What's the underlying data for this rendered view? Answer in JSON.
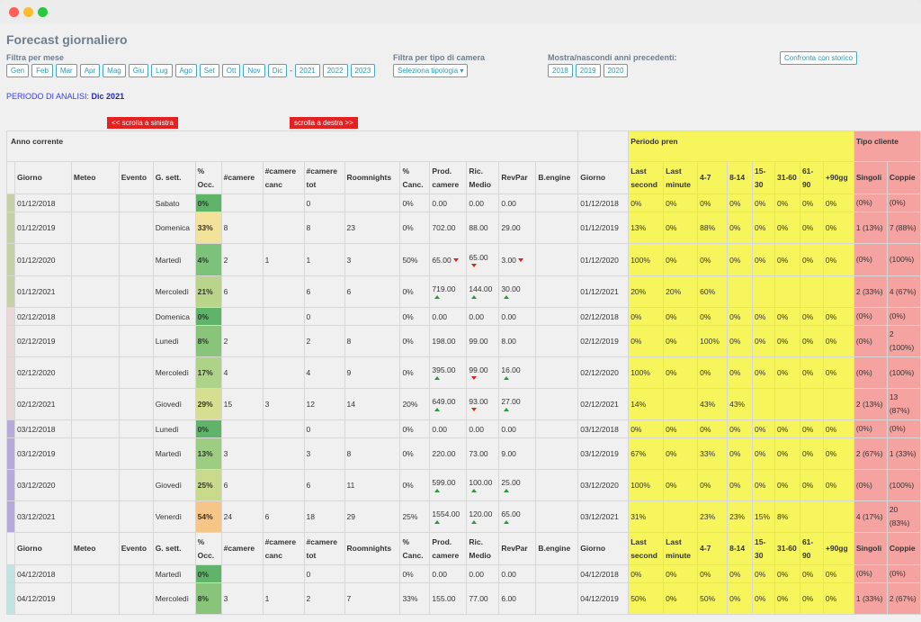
{
  "page_title": "Forecast giornaliero",
  "filters": {
    "month_label": "Filtra per mese",
    "months": [
      "Gen",
      "Feb",
      "Mar",
      "Apr",
      "Mag",
      "Giu",
      "Lug",
      "Ago",
      "Set",
      "Ott",
      "Nov",
      "Dic"
    ],
    "separator": "-",
    "years": [
      "2021",
      "2022",
      "2023"
    ],
    "room_label": "Filtra per tipo di camera",
    "room_select": "Seleziona tipologia",
    "prev_label": "Mostra/nascondi anni precedenti:",
    "prev_years": [
      "2018",
      "2019",
      "2020"
    ],
    "compare_button": "Confronta con storico"
  },
  "period": {
    "label": "PERIODO DI ANALISI:",
    "value": "Dic 2021"
  },
  "scroll": {
    "left": "<< scrolla a sinistra",
    "right": "scrolla a destra >>"
  },
  "colors": {
    "accent": "#2f98b8",
    "yellow": "#f7f55c",
    "pink": "#f4a3a0",
    "red": "#e52020"
  },
  "table": {
    "section_current": "Anno corrente",
    "section_period": "Periodo pren",
    "section_client": "Tipo cliente",
    "headers": [
      "Giorno",
      "Meteo",
      "Evento",
      "G. sett.",
      "% Occ.",
      "#camere",
      "#camere canc",
      "#camere tot",
      "Roomnights",
      "% Canc.",
      "Prod. camere",
      "Ric. Medio",
      "RevPar",
      "B.engine",
      "Giorno",
      "Last second",
      "Last minute",
      "4-7",
      "8-14",
      "15-30",
      "31-60",
      "61-90",
      "+90gg",
      "Singoli",
      "Coppie"
    ],
    "groups": [
      {
        "bar": "#c6cfa6",
        "rows": [
          {
            "day": "01/12/2018",
            "wd": "Sabato",
            "occ": "0%",
            "occ_bg": "#5fb46a",
            "cam": "",
            "canc": "",
            "tot": "0",
            "rn": "",
            "pc": "0%",
            "prod": "0.00",
            "ric": "0.00",
            "rev": "0.00",
            "prod_a": "",
            "ric_a": "",
            "rev_a": "",
            "d2": "01/12/2018",
            "ls": "0%",
            "lm": "0%",
            "c1": "0%",
            "c2": "0%",
            "c3": "0%",
            "c4": "0%",
            "c5": "0%",
            "c6": "0%",
            "sin": "(0%)",
            "cop": "(0%)"
          },
          {
            "day": "01/12/2019",
            "wd": "Domenica",
            "occ": "33%",
            "occ_bg": "#f2e29a",
            "cam": "8",
            "canc": "",
            "tot": "8",
            "rn": "23",
            "pc": "0%",
            "prod": "702.00",
            "ric": "88.00",
            "rev": "29.00",
            "prod_a": "",
            "ric_a": "",
            "rev_a": "",
            "d2": "01/12/2019",
            "ls": "13%",
            "lm": "0%",
            "c1": "88%",
            "c2": "0%",
            "c3": "0%",
            "c4": "0%",
            "c5": "0%",
            "c6": "0%",
            "sin": "1 (13%)",
            "cop": "7 (88%)"
          },
          {
            "day": "01/12/2020",
            "wd": "Martedì",
            "occ": "4%",
            "occ_bg": "#7cc27a",
            "cam": "2",
            "canc": "1",
            "tot": "1",
            "rn": "3",
            "pc": "50%",
            "prod": "65.00",
            "ric": "65.00",
            "rev": "3.00",
            "prod_a": "down-inline",
            "ric_a": "down",
            "rev_a": "down-inline",
            "d2": "01/12/2020",
            "ls": "100%",
            "lm": "0%",
            "c1": "0%",
            "c2": "0%",
            "c3": "0%",
            "c4": "0%",
            "c5": "0%",
            "c6": "0%",
            "sin": "(0%)",
            "cop": "(100%)"
          },
          {
            "day": "01/12/2021",
            "wd": "Mercoledì",
            "occ": "21%",
            "occ_bg": "#b9d58a",
            "cam": "6",
            "canc": "",
            "tot": "6",
            "rn": "6",
            "pc": "0%",
            "prod": "719.00",
            "ric": "144.00",
            "rev": "30.00",
            "prod_a": "up",
            "ric_a": "up",
            "rev_a": "up",
            "d2": "01/12/2021",
            "ls": "20%",
            "lm": "20%",
            "c1": "60%",
            "c2": "",
            "c3": "",
            "c4": "",
            "c5": "",
            "c6": "",
            "sin": "2 (33%)",
            "cop": "4 (67%)"
          }
        ]
      },
      {
        "bar": "#ead7dc",
        "rows": [
          {
            "day": "02/12/2018",
            "wd": "Domenica",
            "occ": "0%",
            "occ_bg": "#5fb46a",
            "cam": "",
            "canc": "",
            "tot": "0",
            "rn": "",
            "pc": "0%",
            "prod": "0.00",
            "ric": "0.00",
            "rev": "0.00",
            "prod_a": "",
            "ric_a": "",
            "rev_a": "",
            "d2": "02/12/2018",
            "ls": "0%",
            "lm": "0%",
            "c1": "0%",
            "c2": "0%",
            "c3": "0%",
            "c4": "0%",
            "c5": "0%",
            "c6": "0%",
            "sin": "(0%)",
            "cop": "(0%)"
          },
          {
            "day": "02/12/2019",
            "wd": "Lunedì",
            "occ": "8%",
            "occ_bg": "#88c57a",
            "cam": "2",
            "canc": "",
            "tot": "2",
            "rn": "8",
            "pc": "0%",
            "prod": "198.00",
            "ric": "99.00",
            "rev": "8.00",
            "prod_a": "",
            "ric_a": "",
            "rev_a": "",
            "d2": "02/12/2019",
            "ls": "0%",
            "lm": "0%",
            "c1": "100%",
            "c2": "0%",
            "c3": "0%",
            "c4": "0%",
            "c5": "0%",
            "c6": "0%",
            "sin": "(0%)",
            "cop": "2 (100%)"
          },
          {
            "day": "02/12/2020",
            "wd": "Mercoledì",
            "occ": "17%",
            "occ_bg": "#aed288",
            "cam": "4",
            "canc": "",
            "tot": "4",
            "rn": "9",
            "pc": "0%",
            "prod": "395.00",
            "ric": "99.00",
            "rev": "16.00",
            "prod_a": "up",
            "ric_a": "down",
            "rev_a": "up",
            "d2": "02/12/2020",
            "ls": "100%",
            "lm": "0%",
            "c1": "0%",
            "c2": "0%",
            "c3": "0%",
            "c4": "0%",
            "c5": "0%",
            "c6": "0%",
            "sin": "(0%)",
            "cop": "(100%)"
          },
          {
            "day": "02/12/2021",
            "wd": "Giovedì",
            "occ": "29%",
            "occ_bg": "#d6df8f",
            "cam": "15",
            "canc": "3",
            "tot": "12",
            "rn": "14",
            "pc": "20%",
            "prod": "649.00",
            "ric": "93.00",
            "rev": "27.00",
            "prod_a": "up",
            "ric_a": "down",
            "rev_a": "up",
            "d2": "02/12/2021",
            "ls": "14%",
            "lm": "",
            "c1": "43%",
            "c2": "43%",
            "c3": "",
            "c4": "",
            "c5": "",
            "c6": "",
            "sin": "2 (13%)",
            "cop": "13 (87%)"
          }
        ]
      },
      {
        "bar": "#b7a9dc",
        "rows": [
          {
            "day": "03/12/2018",
            "wd": "Lunedì",
            "occ": "0%",
            "occ_bg": "#5fb46a",
            "cam": "",
            "canc": "",
            "tot": "0",
            "rn": "",
            "pc": "0%",
            "prod": "0.00",
            "ric": "0.00",
            "rev": "0.00",
            "prod_a": "",
            "ric_a": "",
            "rev_a": "",
            "d2": "03/12/2018",
            "ls": "0%",
            "lm": "0%",
            "c1": "0%",
            "c2": "0%",
            "c3": "0%",
            "c4": "0%",
            "c5": "0%",
            "c6": "0%",
            "sin": "(0%)",
            "cop": "(0%)"
          },
          {
            "day": "03/12/2019",
            "wd": "Martedì",
            "occ": "13%",
            "occ_bg": "#9ccd82",
            "cam": "3",
            "canc": "",
            "tot": "3",
            "rn": "8",
            "pc": "0%",
            "prod": "220.00",
            "ric": "73.00",
            "rev": "9.00",
            "prod_a": "",
            "ric_a": "",
            "rev_a": "",
            "d2": "03/12/2019",
            "ls": "67%",
            "lm": "0%",
            "c1": "33%",
            "c2": "0%",
            "c3": "0%",
            "c4": "0%",
            "c5": "0%",
            "c6": "0%",
            "sin": "2 (67%)",
            "cop": "1 (33%)"
          },
          {
            "day": "03/12/2020",
            "wd": "Giovedì",
            "occ": "25%",
            "occ_bg": "#c9da8c",
            "cam": "6",
            "canc": "",
            "tot": "6",
            "rn": "11",
            "pc": "0%",
            "prod": "599.00",
            "ric": "100.00",
            "rev": "25.00",
            "prod_a": "up",
            "ric_a": "up",
            "rev_a": "up",
            "d2": "03/12/2020",
            "ls": "100%",
            "lm": "0%",
            "c1": "0%",
            "c2": "0%",
            "c3": "0%",
            "c4": "0%",
            "c5": "0%",
            "c6": "0%",
            "sin": "(0%)",
            "cop": "(100%)"
          },
          {
            "day": "03/12/2021",
            "wd": "Venerdì",
            "occ": "54%",
            "occ_bg": "#f6c688",
            "cam": "24",
            "canc": "6",
            "tot": "18",
            "rn": "29",
            "pc": "25%",
            "prod": "1554.00",
            "ric": "120.00",
            "rev": "65.00",
            "prod_a": "up",
            "ric_a": "up",
            "rev_a": "up",
            "d2": "03/12/2021",
            "ls": "31%",
            "lm": "",
            "c1": "23%",
            "c2": "23%",
            "c3": "15%",
            "c4": "8%",
            "c5": "",
            "c6": "",
            "sin": "4 (17%)",
            "cop": "20 (83%)"
          }
        ]
      },
      {
        "bar": "#bfe4e2",
        "repeat_header": true,
        "rows": [
          {
            "day": "04/12/2018",
            "wd": "Martedì",
            "occ": "0%",
            "occ_bg": "#5fb46a",
            "cam": "",
            "canc": "",
            "tot": "0",
            "rn": "",
            "pc": "0%",
            "prod": "0.00",
            "ric": "0.00",
            "rev": "0.00",
            "prod_a": "",
            "ric_a": "",
            "rev_a": "",
            "d2": "04/12/2018",
            "ls": "0%",
            "lm": "0%",
            "c1": "0%",
            "c2": "0%",
            "c3": "0%",
            "c4": "0%",
            "c5": "0%",
            "c6": "0%",
            "sin": "(0%)",
            "cop": "(0%)"
          },
          {
            "day": "04/12/2019",
            "wd": "Mercoledì",
            "occ": "8%",
            "occ_bg": "#88c57a",
            "cam": "3",
            "canc": "1",
            "tot": "2",
            "rn": "7",
            "pc": "33%",
            "prod": "155.00",
            "ric": "77.00",
            "rev": "6.00",
            "prod_a": "",
            "ric_a": "",
            "rev_a": "",
            "d2": "04/12/2019",
            "ls": "50%",
            "lm": "0%",
            "c1": "50%",
            "c2": "0%",
            "c3": "0%",
            "c4": "0%",
            "c5": "0%",
            "c6": "0%",
            "sin": "1 (33%)",
            "cop": "2 (67%)"
          }
        ]
      }
    ]
  }
}
